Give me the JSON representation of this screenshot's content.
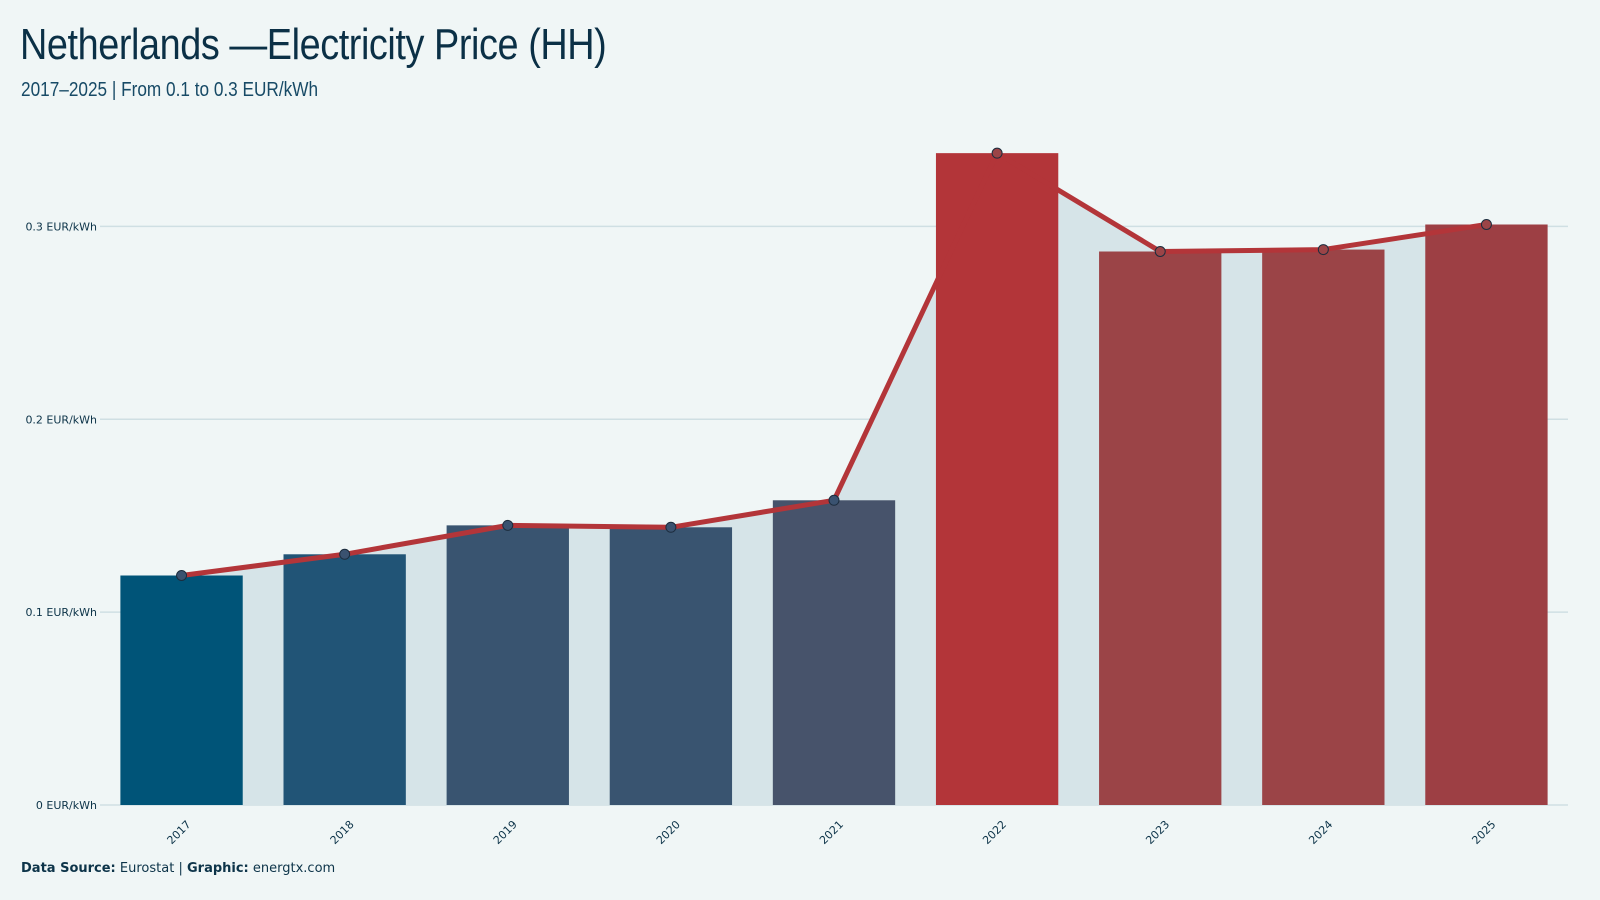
{
  "header": {
    "title": "Netherlands —Electricity Price (HH)",
    "subtitle": "2017–2025 | From 0.1 to 0.3 EUR/kWh"
  },
  "footer": {
    "source_label": "Data Source:",
    "source_value": "Eurostat",
    "separator": "|",
    "graphic_label": "Graphic:",
    "graphic_value": "energtx.com"
  },
  "chart_data": {
    "type": "bar",
    "categories": [
      "2017",
      "2018",
      "2019",
      "2020",
      "2021",
      "2022",
      "2023",
      "2024",
      "2025"
    ],
    "values": [
      0.119,
      0.13,
      0.145,
      0.144,
      0.158,
      0.338,
      0.287,
      0.288,
      0.301
    ],
    "bar_colors": [
      "#005478",
      "#215476",
      "#395470",
      "#395470",
      "#47536b",
      "#b33539",
      "#9b4447",
      "#9b4447",
      "#9d3f44"
    ],
    "line_color": "#b33539",
    "area_color": "#d6e4e8",
    "marker_color": "#3a5270",
    "ylim": [
      0,
      0.35
    ],
    "yticks": [
      0,
      0.1,
      0.2,
      0.3
    ],
    "ytick_labels": [
      "0 EUR/kWh",
      "0.1 EUR/kWh",
      "0.2 EUR/kWh",
      "0.3 EUR/kWh"
    ],
    "grid": true,
    "xlabel": "",
    "ylabel": ""
  }
}
